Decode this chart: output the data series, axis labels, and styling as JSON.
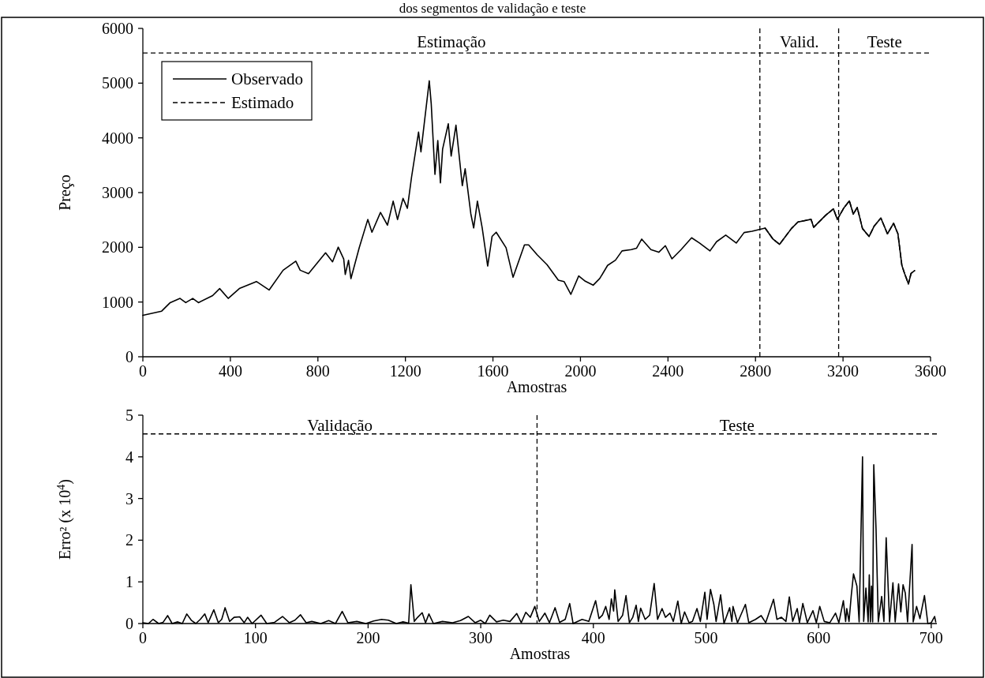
{
  "chart_data": [
    {
      "type": "line",
      "title": "dos segmentos de validação e teste",
      "xlabel": "Amostras",
      "ylabel": "Preço",
      "xlim": [
        0,
        3600
      ],
      "xticks": [
        0,
        400,
        800,
        1200,
        1600,
        2000,
        2400,
        2800,
        3200,
        3600
      ],
      "ylim": [
        0,
        6000
      ],
      "yticks": [
        0,
        1000,
        2000,
        3000,
        4000,
        5000,
        6000
      ],
      "legend": "top left",
      "series": [
        {
          "name": "Observado",
          "color": "#000000",
          "line_style": "solid",
          "x": [
            0,
            86,
            125,
            170,
            196,
            228,
            254,
            319,
            351,
            390,
            441,
            519,
            577,
            641,
            699,
            719,
            757,
            835,
            867,
            893,
            918,
            925,
            940,
            951,
            989,
            1028,
            1047,
            1086,
            1118,
            1144,
            1164,
            1189,
            1209,
            1228,
            1260,
            1271,
            1286,
            1309,
            1318,
            1335,
            1348,
            1360,
            1370,
            1396,
            1409,
            1431,
            1460,
            1473,
            1499,
            1512,
            1529,
            1551,
            1576,
            1596,
            1615,
            1660,
            1692,
            1744,
            1763,
            1802,
            1847,
            1899,
            1925,
            1956,
            1992,
            2022,
            2058,
            2088,
            2124,
            2160,
            2190,
            2232,
            2256,
            2280,
            2322,
            2358,
            2388,
            2418,
            2460,
            2508,
            2544,
            2592,
            2622,
            2664,
            2712,
            2748,
            2784,
            2844,
            2880,
            2910,
            2964,
            2994,
            3054,
            3066,
            3120,
            3156,
            3174,
            3205,
            3229,
            3247,
            3265,
            3289,
            3319,
            3343,
            3373,
            3403,
            3431,
            3451,
            3469,
            3481,
            3499,
            3511,
            3527
          ],
          "values": [
            757,
            834,
            989,
            1066,
            989,
            1066,
            989,
            1118,
            1246,
            1066,
            1246,
            1375,
            1220,
            1581,
            1746,
            1581,
            1519,
            1900,
            1735,
            2003,
            1787,
            1504,
            1761,
            1427,
            1993,
            2508,
            2276,
            2637,
            2405,
            2843,
            2508,
            2894,
            2714,
            3281,
            4105,
            3744,
            4259,
            5042,
            4620,
            3332,
            3950,
            3178,
            3796,
            4259,
            3667,
            4233,
            3126,
            3435,
            2611,
            2354,
            2843,
            2354,
            1658,
            2199,
            2276,
            1993,
            1452,
            2045,
            2045,
            1864,
            1684,
            1400,
            1375,
            1140,
            1477,
            1380,
            1308,
            1429,
            1669,
            1765,
            1934,
            1958,
            1982,
            2150,
            1958,
            1910,
            2030,
            1789,
            1958,
            2174,
            2078,
            1934,
            2102,
            2222,
            2078,
            2270,
            2294,
            2352,
            2150,
            2054,
            2342,
            2463,
            2511,
            2367,
            2583,
            2703,
            2511,
            2727,
            2848,
            2607,
            2727,
            2342,
            2198,
            2391,
            2535,
            2246,
            2439,
            2246,
            1669,
            1525,
            1332,
            1525,
            1573
          ]
        },
        {
          "name": "Estimado",
          "color": "#000000",
          "line_style": "dashed",
          "x": [
            2844,
            2880,
            2910,
            2964,
            2994,
            3054,
            3066,
            3120,
            3156,
            3174,
            3205,
            3229,
            3247,
            3265,
            3289,
            3319,
            3343,
            3373,
            3403,
            3431,
            3451,
            3469,
            3481,
            3499,
            3511,
            3527
          ],
          "values": [
            2352,
            2150,
            2054,
            2342,
            2463,
            2511,
            2367,
            2583,
            2703,
            2511,
            2727,
            2848,
            2607,
            2727,
            2342,
            2198,
            2391,
            2535,
            2246,
            2439,
            2246,
            1669,
            1525,
            1332,
            1525,
            1573
          ]
        }
      ],
      "ref_lines": [
        {
          "axis": "x",
          "value": 2820,
          "line_style": "dashed"
        },
        {
          "axis": "x",
          "value": 3180,
          "line_style": "dashed"
        },
        {
          "axis": "y",
          "value": 5550,
          "line_style": "dashed"
        }
      ],
      "annotations": [
        "Estimação",
        "Valid.",
        "Teste"
      ]
    },
    {
      "type": "line",
      "xlabel": "Amostras",
      "ylabel": "Erro² (x 10$^{4}$)",
      "xlim": [
        0,
        705
      ],
      "xticks": [
        0,
        100,
        200,
        300,
        400,
        500,
        600,
        700
      ],
      "ylim": [
        0,
        5
      ],
      "yticks": [
        0,
        1,
        2,
        3,
        4,
        5
      ],
      "series": [
        {
          "color": "#000000",
          "line_style": "solid",
          "x": [
            0,
            5,
            9,
            14,
            18,
            22,
            26,
            31,
            35,
            39,
            43,
            47,
            51,
            55,
            58,
            63,
            67,
            70,
            73,
            77,
            81,
            86,
            90,
            93,
            97,
            105,
            110,
            117,
            124,
            130,
            135,
            140,
            145,
            150,
            158,
            165,
            171,
            177,
            182,
            190,
            198,
            205,
            212,
            218,
            225,
            231,
            236,
            238,
            241,
            244,
            248,
            251,
            254,
            258,
            266,
            275,
            282,
            289,
            295,
            300,
            304,
            308,
            314,
            320,
            326,
            332,
            336,
            340,
            344,
            348,
            352,
            357,
            361,
            366,
            370,
            375,
            379,
            382,
            390,
            396,
            402,
            405,
            408,
            411,
            414,
            416,
            418,
            419,
            422,
            426,
            429,
            432,
            435,
            438,
            440,
            442,
            446,
            450,
            454,
            457,
            461,
            464,
            468,
            471,
            475,
            478,
            481,
            485,
            488,
            492,
            495,
            499,
            501,
            504,
            507,
            509,
            513,
            516,
            521,
            523,
            524,
            528,
            535,
            538,
            544,
            549,
            553,
            560,
            563,
            567,
            571,
            574,
            577,
            581,
            583,
            586,
            590,
            595,
            598,
            601,
            605,
            610,
            615,
            618,
            622,
            624,
            625,
            627,
            629,
            631,
            634,
            636,
            639,
            640,
            642,
            644,
            645,
            646,
            647,
            648,
            649,
            651,
            653,
            656,
            658,
            660,
            663,
            666,
            668,
            671,
            673,
            675,
            677,
            679,
            683,
            684,
            687,
            690,
            694,
            697,
            700,
            703,
            704
          ],
          "values": [
            0.02,
            0,
            0.1,
            0,
            0.03,
            0.19,
            0,
            0.04,
            0,
            0.23,
            0.08,
            0,
            0.1,
            0.23,
            0.02,
            0.33,
            0.02,
            0.1,
            0.38,
            0.05,
            0.15,
            0.16,
            0.02,
            0.15,
            0,
            0.2,
            0,
            0.03,
            0.17,
            0.02,
            0.08,
            0.21,
            0.02,
            0.05,
            0,
            0.07,
            0,
            0.29,
            0.02,
            0.05,
            0,
            0.06,
            0.1,
            0.08,
            0,
            0.04,
            0.01,
            0.93,
            0.05,
            0.15,
            0.26,
            0.02,
            0.23,
            0,
            0.05,
            0.02,
            0.07,
            0.17,
            0.02,
            0.08,
            0,
            0.2,
            0.04,
            0.08,
            0.05,
            0.24,
            0.02,
            0.27,
            0.15,
            0.41,
            0.05,
            0.25,
            0.02,
            0.38,
            0.03,
            0.1,
            0.48,
            0,
            0.1,
            0.05,
            0.55,
            0.12,
            0.2,
            0.41,
            0.1,
            0.59,
            0.3,
            0.81,
            0.05,
            0.2,
            0.67,
            0.02,
            0.15,
            0.44,
            0.05,
            0.37,
            0.1,
            0.2,
            0.96,
            0.1,
            0.36,
            0.15,
            0.25,
            0.05,
            0.54,
            0,
            0.28,
            0.02,
            0.05,
            0.36,
            0.05,
            0.75,
            0.1,
            0.82,
            0.46,
            0.05,
            0.69,
            0,
            0.38,
            0.05,
            0.41,
            0.02,
            0.46,
            0.02,
            0.1,
            0.19,
            0.02,
            0.58,
            0.1,
            0.15,
            0.05,
            0.64,
            0.05,
            0.36,
            0.02,
            0.48,
            0.02,
            0.31,
            0.02,
            0.41,
            0.05,
            0.02,
            0.25,
            0.02,
            0.55,
            0.05,
            0.36,
            0.05,
            0.67,
            1.19,
            0.9,
            0.04,
            4.0,
            0.05,
            0.85,
            0.04,
            1.17,
            0.04,
            0.9,
            0.04,
            3.81,
            2.27,
            0.04,
            0.65,
            0.05,
            2.06,
            0.04,
            0.98,
            0.04,
            0.95,
            0.28,
            0.93,
            0.73,
            0.04,
            1.9,
            0.04,
            0.41,
            0.12,
            0.67,
            0,
            0.02,
            0.17,
            0.04
          ]
        }
      ],
      "ref_lines": [
        {
          "axis": "x",
          "value": 350,
          "line_style": "dashed"
        },
        {
          "axis": "y",
          "value": 4.55,
          "line_style": "dashed"
        }
      ],
      "annotations": [
        "Validação",
        "Teste"
      ]
    }
  ]
}
